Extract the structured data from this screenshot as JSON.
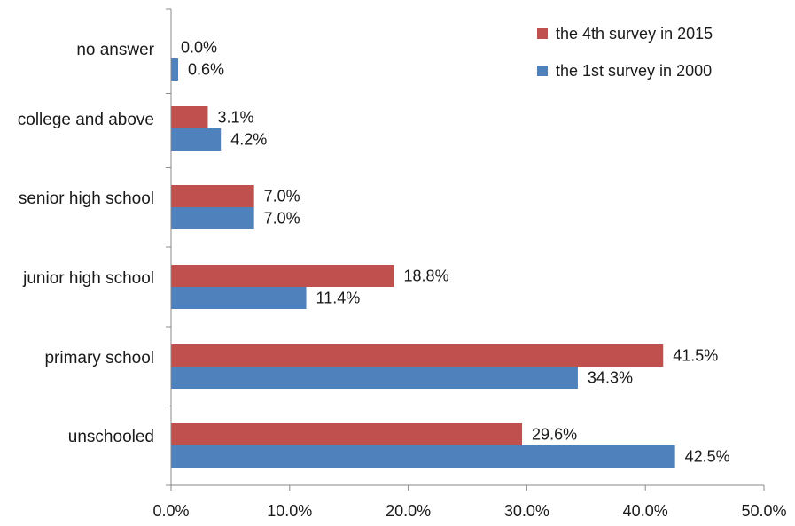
{
  "chart_data": {
    "type": "bar",
    "orientation": "horizontal",
    "title": "",
    "xlabel": "",
    "ylabel": "",
    "categories": [
      "no answer",
      "college and above",
      "senior high school",
      "junior high school",
      "primary school",
      "unschooled"
    ],
    "series": [
      {
        "name": "the 4th survey in 2015",
        "color": "#c0504d",
        "values": [
          0.0,
          3.1,
          7.0,
          18.8,
          41.5,
          29.6
        ],
        "labels": [
          "0.0%",
          "3.1%",
          "7.0%",
          "18.8%",
          "41.5%",
          "29.6%"
        ]
      },
      {
        "name": "the 1st survey in 2000",
        "color": "#4f81bd",
        "values": [
          0.6,
          4.2,
          7.0,
          11.4,
          34.3,
          42.5
        ],
        "labels": [
          "0.6%",
          "4.2%",
          "7.0%",
          "11.4%",
          "34.3%",
          "42.5%"
        ]
      }
    ],
    "xlim": [
      0,
      50
    ],
    "xticks": [
      0,
      10,
      20,
      30,
      40,
      50
    ],
    "xtick_labels": [
      "0.0%",
      "10.0%",
      "20.0%",
      "30.0%",
      "40.0%",
      "50.0%"
    ],
    "grid": false,
    "legend_position": "top-right"
  }
}
